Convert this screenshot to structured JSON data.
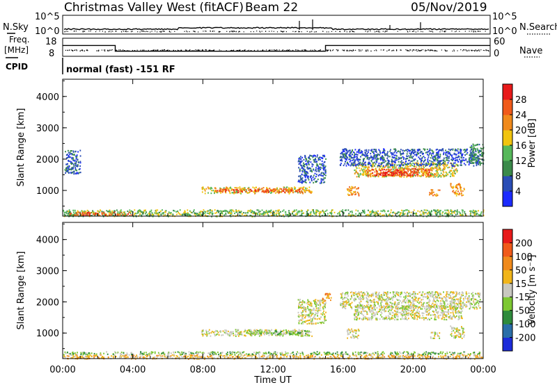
{
  "header": {
    "station": "Christmas Valley West (fitACF)",
    "beam": "Beam 22",
    "date": "05/Nov/2019"
  },
  "strips": {
    "nsky_label": "N.Sky",
    "nsky_ticks": [
      "10^5",
      "10^0"
    ],
    "nsearch_label": "N.Search",
    "nsearch_ticks": [
      "10^5",
      "10^0"
    ],
    "freq_label_1": "Freq.",
    "freq_label_2": "[MHz]",
    "freq_ticks": [
      "18",
      "8"
    ],
    "nave_label": "Nave",
    "nave_ticks": [
      "60",
      "0"
    ],
    "cpid_label": "CPID",
    "cpid_text": "normal (fast) -151 RF",
    "freq_steps_mhz": [
      [
        0,
        14
      ],
      [
        3,
        10.8
      ],
      [
        15,
        14
      ]
    ]
  },
  "chart_data": [
    {
      "type": "heatmap",
      "name": "power",
      "ylabel": "Slant Range [km]",
      "ylim": [
        180,
        4550
      ],
      "yticks": [
        1000,
        2000,
        3000,
        4000
      ],
      "xlim": [
        0,
        24
      ],
      "colorbar": {
        "label": "Power [dB]",
        "ticks": [
          "28",
          "24",
          "20",
          "16",
          "12",
          "8",
          "4"
        ],
        "colors": [
          "#1c2bff",
          "#2a4db5",
          "#3a8a4a",
          "#56b85a",
          "#f1c40f",
          "#f08a1c",
          "#f05a1a",
          "#e81a1a"
        ]
      },
      "regions": [
        {
          "t0": 7.9,
          "t1": 14.2,
          "r0": 920,
          "r1": 1130,
          "lvl": 4
        },
        {
          "t0": 8.7,
          "t1": 13.8,
          "r0": 960,
          "r1": 1090,
          "lvl": 6
        },
        {
          "t0": 16.6,
          "t1": 22.5,
          "r0": 1450,
          "r1": 1900,
          "lvl": 4
        },
        {
          "t0": 17.3,
          "t1": 21.0,
          "r0": 1480,
          "r1": 1720,
          "lvl": 6
        },
        {
          "t0": 18.0,
          "t1": 20.2,
          "r0": 1500,
          "r1": 1620,
          "lvl": 7
        },
        {
          "t0": 15.8,
          "t1": 23.8,
          "r0": 1800,
          "r1": 2350,
          "lvl": 1
        },
        {
          "t0": 13.4,
          "t1": 15.0,
          "r0": 1250,
          "r1": 2150,
          "lvl": 1
        },
        {
          "t0": 16.2,
          "t1": 16.9,
          "r0": 850,
          "r1": 1150,
          "lvl": 5
        },
        {
          "t0": 20.9,
          "t1": 21.5,
          "r0": 850,
          "r1": 1050,
          "lvl": 5
        },
        {
          "t0": 22.1,
          "t1": 22.9,
          "r0": 850,
          "r1": 1250,
          "lvl": 5
        },
        {
          "t0": 23.2,
          "t1": 24.0,
          "r0": 1850,
          "r1": 2500,
          "lvl": 2
        },
        {
          "t0": 0.1,
          "t1": 1.0,
          "r0": 1550,
          "r1": 2300,
          "lvl": 1
        },
        {
          "t0": 0.0,
          "t1": 24.0,
          "r0": 190,
          "r1": 400,
          "lvl": 3
        },
        {
          "t0": 0.3,
          "t1": 4.0,
          "r0": 220,
          "r1": 330,
          "lvl": 6
        }
      ]
    },
    {
      "type": "heatmap",
      "name": "velocity",
      "ylabel": "Slant Range [km]",
      "xlabel": "Time UT",
      "ylim": [
        180,
        4550
      ],
      "yticks": [
        1000,
        2000,
        3000,
        4000
      ],
      "xlim": [
        0,
        24
      ],
      "xticks": [
        "00:00",
        "04:00",
        "08:00",
        "12:00",
        "16:00",
        "20:00",
        "00:00"
      ],
      "colorbar": {
        "label": "Velocity [m s⁻¹]",
        "ticks": [
          "200",
          "100",
          "50",
          "15",
          "-15",
          "-50",
          "-100",
          "-200"
        ],
        "colors": [
          "#1c2bd9",
          "#2a6ea8",
          "#2e8b3c",
          "#7dc832",
          "#c8c8c0",
          "#f1b51a",
          "#f08a1c",
          "#f05a1a",
          "#e81a1a"
        ]
      },
      "regions": [
        {
          "t0": 7.9,
          "t1": 14.2,
          "r0": 920,
          "r1": 1130,
          "lvl": 4
        },
        {
          "t0": 10.6,
          "t1": 14.0,
          "r0": 960,
          "r1": 1100,
          "lvl": 3
        },
        {
          "t0": 16.6,
          "t1": 22.8,
          "r0": 1450,
          "r1": 1900,
          "lvl": 4
        },
        {
          "t0": 15.8,
          "t1": 23.8,
          "r0": 1800,
          "r1": 2350,
          "lvl": 4
        },
        {
          "t0": 13.4,
          "t1": 15.0,
          "r0": 1300,
          "r1": 2100,
          "lvl": 4
        },
        {
          "t0": 16.2,
          "t1": 16.9,
          "r0": 850,
          "r1": 1150,
          "lvl": 4
        },
        {
          "t0": 20.9,
          "t1": 21.5,
          "r0": 850,
          "r1": 1050,
          "lvl": 4
        },
        {
          "t0": 22.1,
          "t1": 22.9,
          "r0": 850,
          "r1": 1250,
          "lvl": 4
        },
        {
          "t0": 0.0,
          "t1": 24.0,
          "r0": 190,
          "r1": 330,
          "lvl": 5
        },
        {
          "t0": 0.0,
          "t1": 24.0,
          "r0": 330,
          "r1": 420,
          "lvl": 3
        },
        {
          "t0": 14.8,
          "t1": 15.3,
          "r0": 2050,
          "r1": 2300,
          "lvl": 6
        }
      ]
    }
  ]
}
